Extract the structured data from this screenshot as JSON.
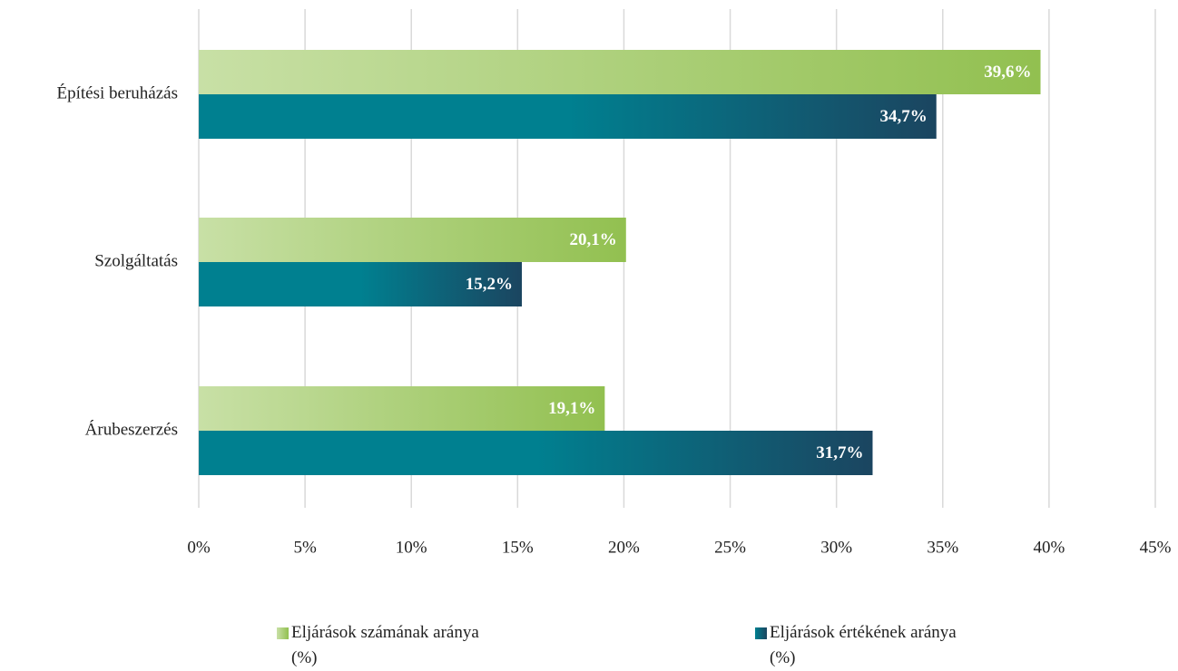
{
  "chart_data": {
    "type": "hbar",
    "categories": [
      "Építési beruházás",
      "Szolgáltatás",
      "Árubeszerzés"
    ],
    "series": [
      {
        "name": "Eljárások számának aránya (%)",
        "color": "#92c050",
        "gradient": [
          "#c8e0a6",
          "#92c050"
        ],
        "values": [
          39.6,
          20.1,
          19.1
        ],
        "value_labels": [
          "39,6%",
          "20,1%",
          "19,1%"
        ]
      },
      {
        "name": "Eljárások értékének aránya (%)",
        "color": "#1b4560",
        "gradient": [
          "#008090",
          "#1b4560"
        ],
        "values": [
          34.7,
          15.2,
          31.7
        ],
        "value_labels": [
          "34,7%",
          "15,2%",
          "31,7%"
        ]
      }
    ],
    "xlim": [
      0,
      45
    ],
    "xticks": [
      {
        "value": 0,
        "label": "0%"
      },
      {
        "value": 5,
        "label": "5%"
      },
      {
        "value": 10,
        "label": "10%"
      },
      {
        "value": 15,
        "label": "15%"
      },
      {
        "value": 20,
        "label": "20%"
      },
      {
        "value": 25,
        "label": "25%"
      },
      {
        "value": 30,
        "label": "30%"
      },
      {
        "value": 35,
        "label": "35%"
      },
      {
        "value": 40,
        "label": "40%"
      },
      {
        "value": 45,
        "label": "45%"
      }
    ],
    "grid": true,
    "legend": "bottom"
  }
}
